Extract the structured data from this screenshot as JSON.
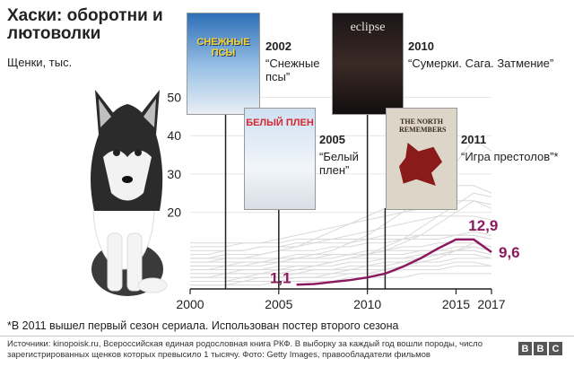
{
  "title": "Хаски: оборотни и лютоволки",
  "subtitle": "Щенки, тыс.",
  "posters": {
    "p2002": {
      "text": "СНЕЖНЫЕ ПСЫ",
      "year": "2002",
      "caption": "“Снежные псы”"
    },
    "p2005": {
      "text": "БЕЛЫЙ ПЛЕН",
      "year": "2005",
      "caption": "“Белый плен”"
    },
    "p2010": {
      "text": "eclipse",
      "year": "2010",
      "caption": "“Сумерки. Сага. Затмение”"
    },
    "p2011": {
      "text": "THE NORTH REMEMBERS",
      "year": "2011",
      "caption": "“Игра престолов”*"
    }
  },
  "footnote": "*В 2011 вышел первый сезон сериала. Использован постер второго сезона",
  "sources": "Источники: kinopoisk.ru, Всероссийская единая родословная книга РКФ. В выборку за каждый год вошли породы, число зарегистрированных щенков которых превысило 1 тысячу. Фото: Getty Images, правообладатели фильмов",
  "brand": [
    "B",
    "B",
    "C"
  ],
  "colors": {
    "highlight": "#8b1a5e",
    "background_lines": "#d9d9d9",
    "axis": "#222222",
    "poster_2002": "#1e5fa8",
    "poster_2005": "#e8eef5",
    "poster_2010": "#1a1416",
    "poster_2011": "#d9d2c4",
    "wolf": "#8b1a1a"
  },
  "chart_data": {
    "type": "line",
    "x_ticks": [
      2000,
      2005,
      2010,
      2015,
      2017
    ],
    "y_ticks": [
      20,
      30,
      40,
      50
    ],
    "xlim": [
      2000,
      2017
    ],
    "ylim": [
      0,
      52
    ],
    "highlight": {
      "x": [
        2006,
        2007,
        2008,
        2009,
        2010,
        2011,
        2012,
        2013,
        2014,
        2015,
        2016,
        2017
      ],
      "y": [
        1.1,
        1.3,
        1.8,
        2.3,
        3.0,
        4.0,
        5.8,
        8.0,
        10.6,
        12.9,
        12.9,
        9.6
      ],
      "labels": [
        {
          "x": 2006,
          "y": 1.1,
          "text": "1,1"
        },
        {
          "x": 2016,
          "y": 12.9,
          "text": "12,9"
        },
        {
          "x": 2017,
          "y": 9.6,
          "text": "9,6"
        }
      ]
    },
    "other_series": [
      [
        5,
        5,
        6,
        6,
        7,
        7,
        8,
        8,
        9,
        9,
        10,
        10,
        11,
        11,
        12,
        12,
        12,
        11
      ],
      [
        3,
        3,
        4,
        4,
        4,
        5,
        5,
        6,
        6,
        7,
        7,
        8,
        8,
        9,
        9,
        10,
        10,
        9
      ],
      [
        8,
        8,
        9,
        9,
        9,
        10,
        10,
        10,
        11,
        11,
        12,
        12,
        13,
        13,
        13,
        14,
        14,
        13
      ],
      [
        2,
        2,
        2,
        3,
        3,
        3,
        4,
        4,
        4,
        5,
        5,
        5,
        6,
        6,
        6,
        7,
        7,
        6
      ],
      [
        6,
        6,
        6,
        7,
        7,
        7,
        8,
        9,
        10,
        12,
        14,
        17,
        20,
        24,
        28,
        33,
        39,
        36
      ],
      [
        10,
        10,
        10,
        10,
        11,
        11,
        11,
        12,
        12,
        12,
        13,
        13,
        13,
        14,
        14,
        14,
        15,
        14
      ],
      [
        4,
        4,
        4,
        5,
        5,
        5,
        6,
        6,
        7,
        8,
        9,
        11,
        13,
        16,
        19,
        22,
        25,
        24
      ],
      [
        7,
        7,
        7,
        7,
        7,
        8,
        8,
        8,
        8,
        9,
        9,
        9,
        9,
        10,
        10,
        10,
        10,
        9
      ],
      [
        12,
        12,
        12,
        12,
        12,
        12,
        13,
        13,
        13,
        13,
        13,
        14,
        14,
        14,
        14,
        14,
        14,
        13
      ],
      [
        1,
        1,
        1,
        2,
        2,
        2,
        3,
        3,
        3,
        4,
        4,
        5,
        6,
        7,
        8,
        10,
        12,
        11
      ],
      [
        9,
        9,
        10,
        10,
        11,
        11,
        12,
        12,
        13,
        14,
        15,
        16,
        17,
        18,
        19,
        19,
        19,
        18
      ],
      [
        3,
        3,
        3,
        3,
        4,
        4,
        4,
        5,
        5,
        5,
        6,
        6,
        7,
        7,
        7,
        8,
        8,
        8
      ],
      [
        5,
        5,
        5,
        5,
        5,
        6,
        6,
        6,
        7,
        8,
        9,
        10,
        12,
        14,
        17,
        20,
        23,
        22
      ],
      [
        8,
        8,
        8,
        8,
        8,
        8,
        9,
        9,
        9,
        9,
        9,
        10,
        10,
        10,
        10,
        11,
        11,
        10
      ],
      [
        2,
        2,
        2,
        2,
        3,
        3,
        3,
        3,
        4,
        4,
        4,
        4,
        5,
        5,
        5,
        6,
        6,
        6
      ],
      [
        11,
        11,
        11,
        12,
        12,
        13,
        14,
        15,
        16,
        17,
        18,
        19,
        20,
        21,
        22,
        23,
        23,
        21
      ],
      [
        6,
        6,
        6,
        6,
        6,
        7,
        7,
        7,
        7,
        8,
        8,
        8,
        8,
        8,
        9,
        9,
        9,
        8
      ],
      [
        4,
        4,
        4,
        4,
        4,
        4,
        5,
        5,
        5,
        6,
        6,
        7,
        7,
        8,
        9,
        10,
        11,
        10
      ],
      [
        7,
        7,
        8,
        8,
        9,
        10,
        11,
        13,
        15,
        17,
        19,
        21,
        23,
        25,
        26,
        27,
        27,
        25
      ],
      [
        1,
        1,
        1,
        1,
        1,
        2,
        2,
        2,
        2,
        3,
        3,
        3,
        3,
        4,
        4,
        4,
        4,
        4
      ]
    ],
    "event_years": [
      2002,
      2005,
      2010,
      2011
    ]
  }
}
